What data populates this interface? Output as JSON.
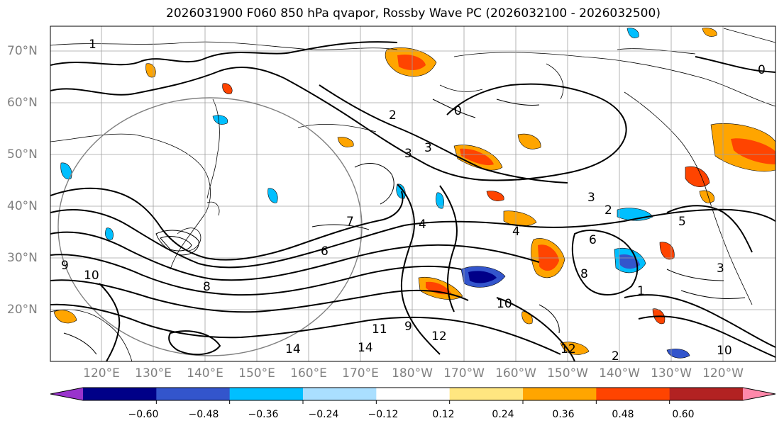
{
  "title": "2026031900 F060 850 hPa qvapor, Rossby Wave PC (2026032100 - 2026032500)",
  "map": {
    "lat_labels": [
      "70°N",
      "60°N",
      "50°N",
      "40°N",
      "30°N",
      "20°N"
    ],
    "lon_labels": [
      "120°E",
      "130°E",
      "140°E",
      "150°E",
      "160°E",
      "170°E",
      "180°W",
      "170°W",
      "160°W",
      "150°W",
      "140°W",
      "130°W",
      "120°W"
    ],
    "gridlines": true
  },
  "contour_labels": [
    "1",
    "0",
    "0",
    "3",
    "3",
    "4",
    "2",
    "2",
    "6",
    "5",
    "3",
    "7",
    "9",
    "10",
    "8",
    "8",
    "9",
    "11",
    "12",
    "10",
    "14",
    "14",
    "12",
    "10",
    "2",
    "1",
    "3",
    "6",
    "4"
  ],
  "colorbar": {
    "colors": [
      "#9933cc",
      "#000088",
      "#3355cc",
      "#00bfff",
      "#aadfff",
      "#ffffff",
      "#ffe680",
      "#ffa500",
      "#ff4400",
      "#b22222",
      "#ff88aa"
    ],
    "tick_labels": [
      "−0.60",
      "−0.48",
      "−0.36",
      "−0.24",
      "−0.12",
      "0.12",
      "0.24",
      "0.36",
      "0.48",
      "0.60"
    ],
    "extend": "both"
  }
}
